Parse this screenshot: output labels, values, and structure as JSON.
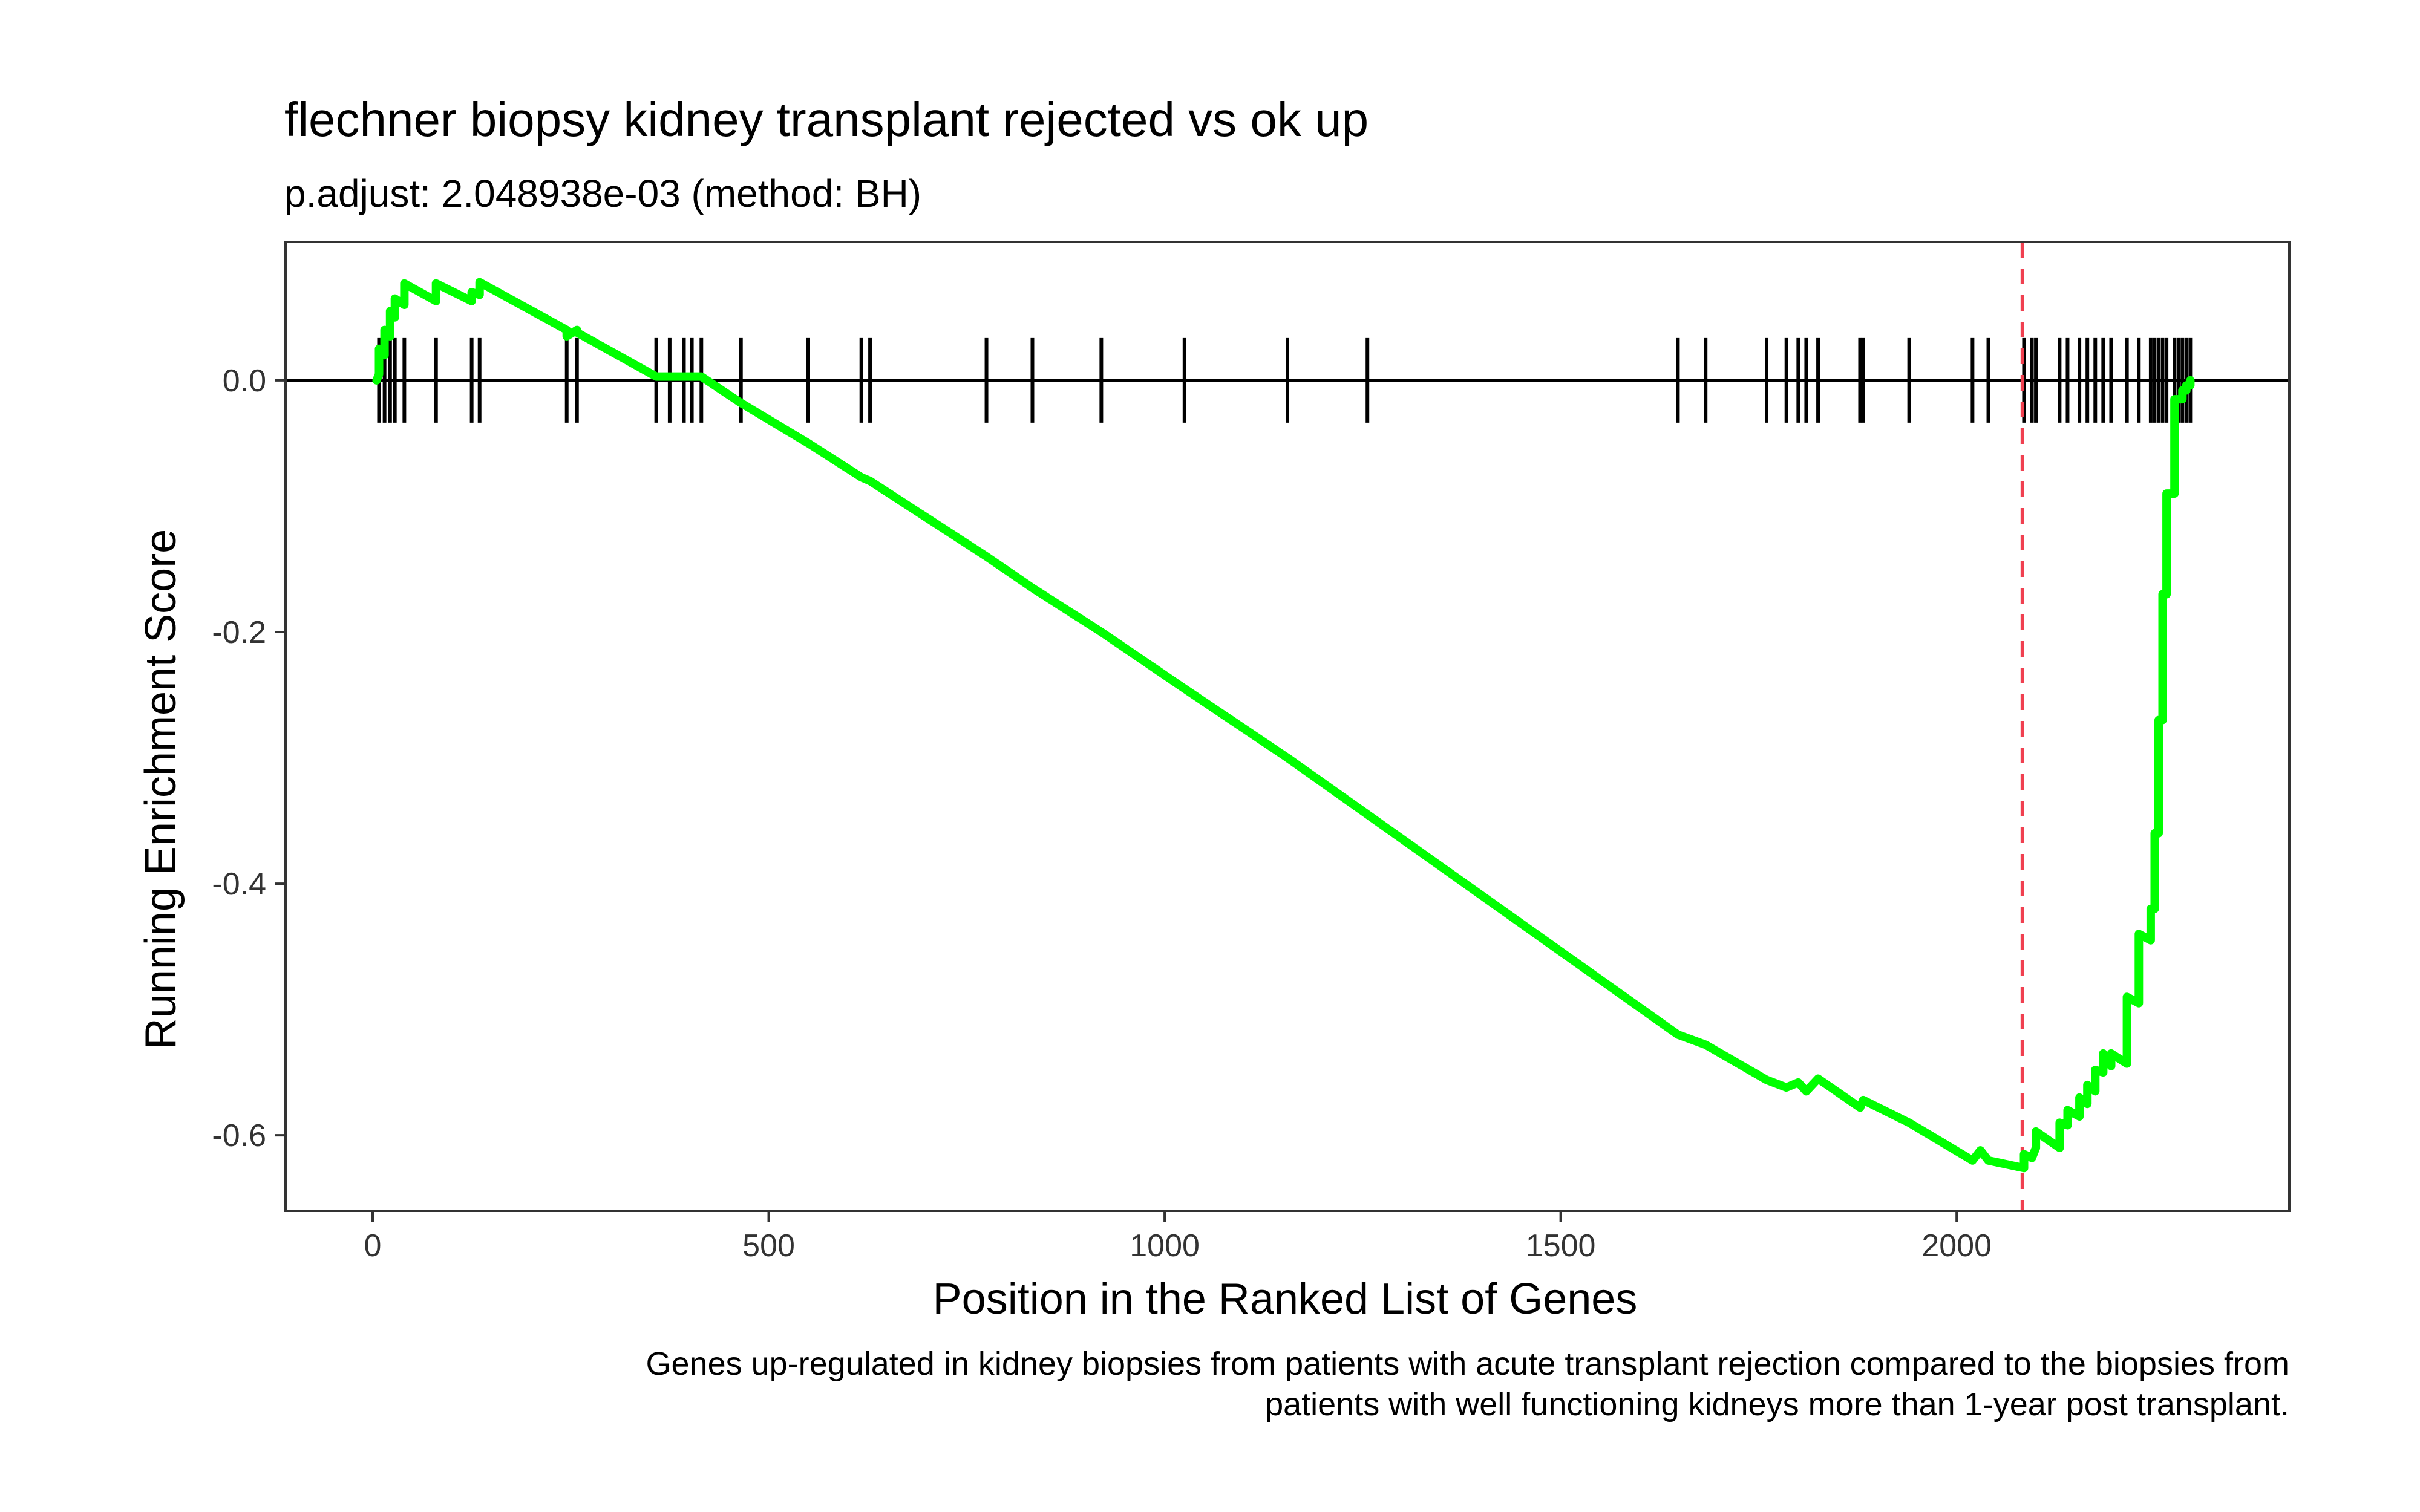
{
  "chart_data": {
    "type": "line",
    "title": "flechner biopsy kidney transplant rejected vs ok up",
    "subtitle": "p.adjust: 2.048938e-03 (method: BH)",
    "xlabel": "Position in the Ranked List of Genes",
    "ylabel": "Running Enrichment Score",
    "caption_lines": [
      "Genes up-regulated in kidney biopsies from patients with acute transplant rejection compared to the biopsies from",
      "patients with well functioning kidneys more than 1-year post transplant."
    ],
    "xlim": [
      -110,
      2420
    ],
    "ylim": [
      -0.66,
      0.11
    ],
    "x_ticks": [
      0,
      500,
      1000,
      1500,
      2000
    ],
    "x_tick_labels": [
      "0",
      "500",
      "1000",
      "1500",
      "2000"
    ],
    "y_ticks": [
      0.0,
      -0.2,
      -0.4,
      -0.6
    ],
    "y_tick_labels": [
      "0.0",
      "-0.2",
      "-0.4",
      "-0.6"
    ],
    "grid": false,
    "zero_line": 0.0,
    "leading_edge_x": 2083,
    "hit_positions": [
      8,
      15,
      22,
      28,
      40,
      80,
      125,
      135,
      245,
      258,
      358,
      375,
      393,
      403,
      415,
      465,
      550,
      617,
      628,
      775,
      833,
      920,
      1025,
      1155,
      1256,
      1648,
      1683,
      1760,
      1785,
      1800,
      1810,
      1825,
      1878,
      1882,
      1940,
      2020,
      2040,
      2085,
      2095,
      2100,
      2130,
      2140,
      2155,
      2165,
      2175,
      2185,
      2195,
      2215,
      2230,
      2245,
      2250,
      2255,
      2260,
      2265,
      2275,
      2280,
      2285,
      2290,
      2295
    ],
    "series": [
      {
        "color": "#00FF00",
        "x": [
          5,
          8,
          8,
          15,
          15,
          22,
          22,
          28,
          28,
          40,
          40,
          80,
          80,
          125,
          125,
          135,
          135,
          245,
          245,
          258,
          258,
          358,
          358,
          415,
          415,
          465,
          550,
          617,
          628,
          775,
          833,
          920,
          1025,
          1155,
          1256,
          1648,
          1683,
          1760,
          1785,
          1800,
          1810,
          1825,
          1878,
          1882,
          1940,
          2020,
          2030,
          2040,
          2085,
          2085,
          2095,
          2100,
          2100,
          2130,
          2130,
          2140,
          2140,
          2155,
          2155,
          2165,
          2165,
          2175,
          2175,
          2185,
          2185,
          2195,
          2195,
          2215,
          2215,
          2230,
          2230,
          2245,
          2245,
          2250,
          2250,
          2255,
          2255,
          2260,
          2260,
          2265,
          2265,
          2275,
          2275,
          2280,
          2280,
          2285,
          2285,
          2290,
          2290,
          2295,
          2295
        ],
        "y": [
          0.0,
          0.005,
          0.025,
          0.02,
          0.04,
          0.035,
          0.055,
          0.05,
          0.065,
          0.06,
          0.077,
          0.063,
          0.077,
          0.063,
          0.07,
          0.068,
          0.078,
          0.04,
          0.035,
          0.04,
          0.038,
          0.003,
          0.003,
          0.003,
          0.003,
          -0.018,
          -0.05,
          -0.077,
          -0.08,
          -0.14,
          -0.165,
          -0.2,
          -0.245,
          -0.3,
          -0.345,
          -0.52,
          -0.528,
          -0.556,
          -0.562,
          -0.558,
          -0.565,
          -0.555,
          -0.578,
          -0.572,
          -0.59,
          -0.62,
          -0.612,
          -0.62,
          -0.626,
          -0.615,
          -0.618,
          -0.61,
          -0.597,
          -0.61,
          -0.59,
          -0.592,
          -0.58,
          -0.585,
          -0.57,
          -0.575,
          -0.56,
          -0.565,
          -0.548,
          -0.55,
          -0.535,
          -0.545,
          -0.535,
          -0.543,
          -0.49,
          -0.495,
          -0.44,
          -0.445,
          -0.42,
          -0.42,
          -0.36,
          -0.36,
          -0.27,
          -0.27,
          -0.17,
          -0.17,
          -0.09,
          -0.09,
          -0.015,
          -0.015,
          -0.015,
          -0.015,
          -0.008,
          -0.008,
          -0.004,
          -0.004,
          0.0
        ]
      }
    ],
    "colors": {
      "curve": "#00FF00",
      "hits": "#000000",
      "zero_line": "#000000",
      "leading_edge": "#F04050",
      "panel_border": "#333333",
      "tick_text": "#333333"
    }
  }
}
